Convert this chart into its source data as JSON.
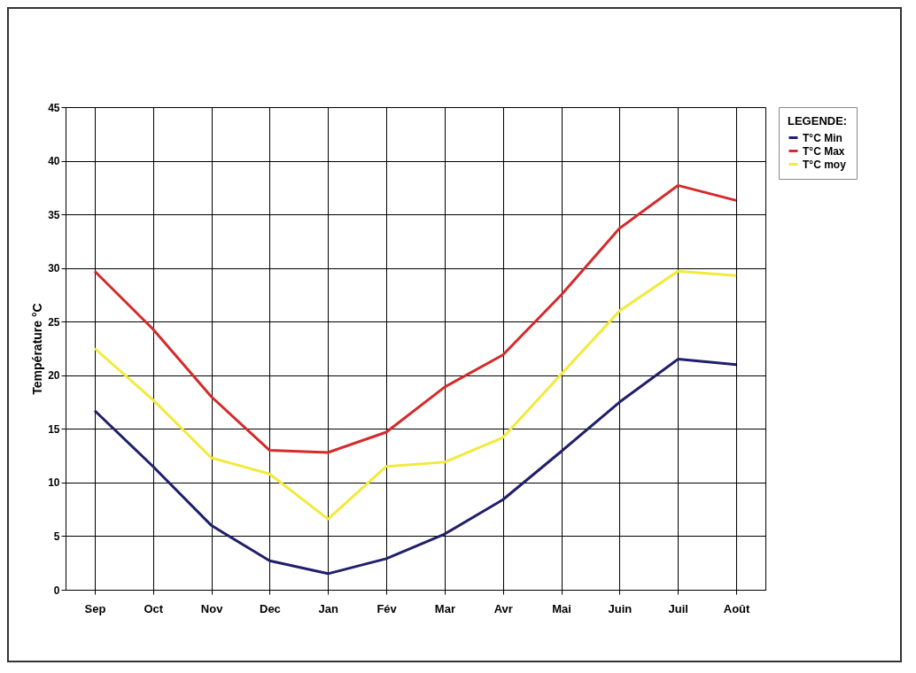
{
  "chart_data": {
    "type": "line",
    "ylabel": "Température °C",
    "legend_title": "LEGENDE:",
    "categories": [
      "Sep",
      "Oct",
      "Nov",
      "Dec",
      "Jan",
      "Fév",
      "Mar",
      "Avr",
      "Mai",
      "Juin",
      "Juil",
      "Août"
    ],
    "series": [
      {
        "name": "T°C Min",
        "color": "#1f1f6b",
        "values": [
          16.7,
          11.5,
          6.0,
          2.7,
          1.5,
          2.9,
          5.2,
          8.4,
          12.9,
          17.5,
          21.5,
          21.0
        ]
      },
      {
        "name": "T°C Max",
        "color": "#d42a2a",
        "values": [
          29.7,
          24.3,
          18.0,
          13.0,
          12.8,
          14.7,
          18.9,
          21.9,
          27.5,
          33.7,
          37.7,
          36.3
        ]
      },
      {
        "name": "T°C moy",
        "color": "#f2ea3c",
        "values": [
          22.5,
          17.7,
          12.3,
          10.8,
          6.6,
          11.5,
          11.9,
          14.2,
          20.1,
          26.0,
          29.7,
          29.3
        ]
      }
    ],
    "ylim": [
      0,
      45
    ],
    "yticks": [
      0,
      5,
      10,
      15,
      20,
      25,
      30,
      35,
      40,
      45
    ],
    "grid": true,
    "legend": "right",
    "marker": "none",
    "line_style": "solid"
  }
}
